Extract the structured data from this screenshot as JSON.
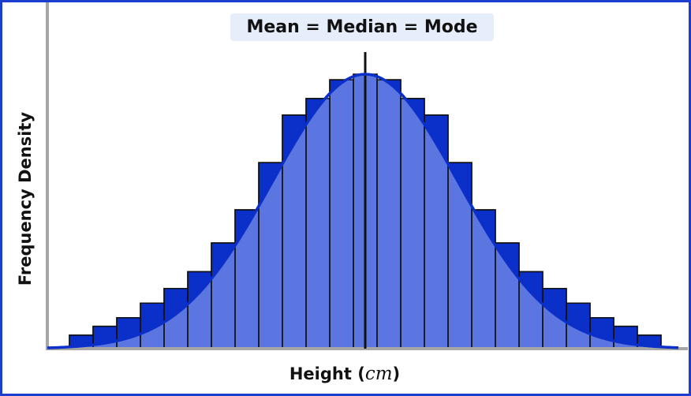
{
  "chart_data": {
    "type": "bar",
    "subtype": "histogram-with-normal-curve",
    "title": "Mean = Median = Mode",
    "xlabel": "Height",
    "xlabel_unit": "cm",
    "ylabel": "Frequency Density",
    "ylim": [
      0,
      100
    ],
    "values": [
      4.9,
      8.1,
      11.2,
      16.5,
      21.8,
      27.9,
      38.3,
      50.3,
      67.4,
      84.6,
      90.6,
      97.4,
      99.4,
      97.4,
      90.6,
      84.6,
      67.4,
      50.3,
      38.3,
      27.9,
      21.8,
      16.5,
      11.2,
      8.1,
      4.9
    ],
    "curve": {
      "shape": "normal",
      "peak": 99.4
    },
    "grid": false,
    "legend": "none"
  },
  "colors": {
    "frame_border": "#1a3fcf",
    "bar_fill": "#0b2fc9",
    "curve_fill": "#5b76e0",
    "overshoot_fill": "#d9e0f5",
    "curve_stroke": "#0b2fc9",
    "axis": "#a6a6a6",
    "title_bg": "#e7eefb"
  }
}
